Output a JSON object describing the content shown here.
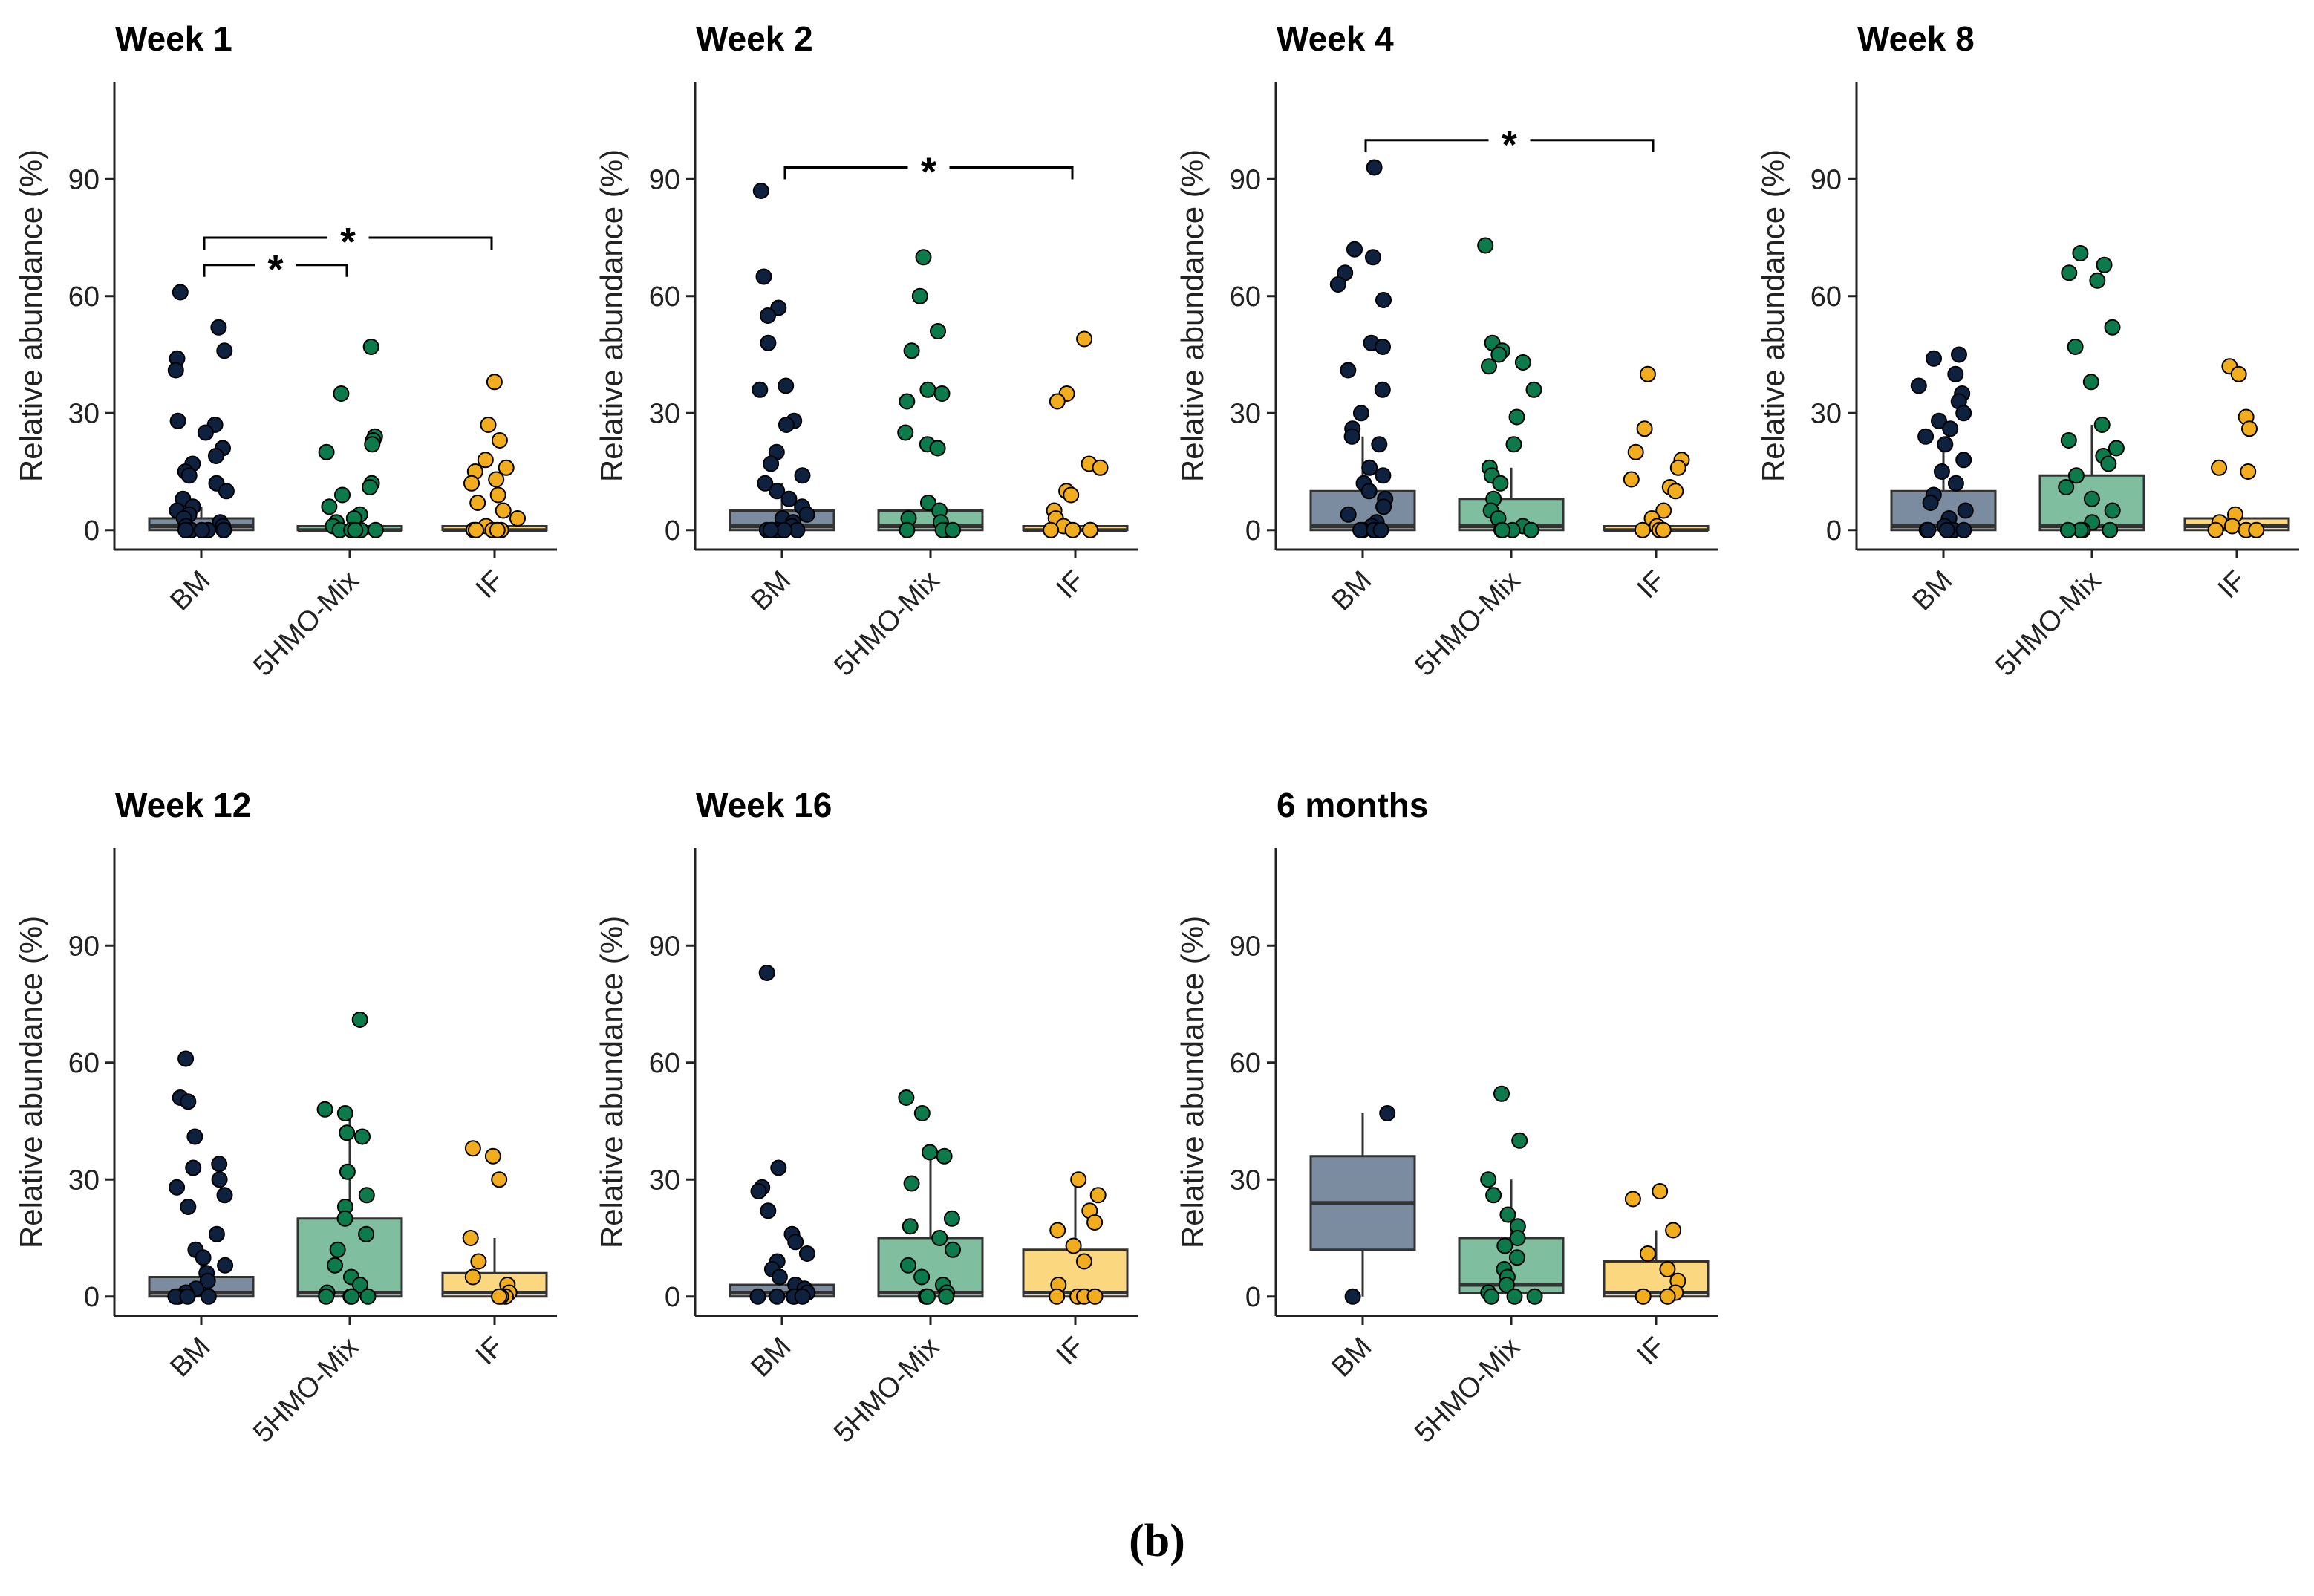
{
  "figure_label": "(b)",
  "colors": {
    "BM": {
      "box": "#7b8ca0",
      "point": "#0e2240"
    },
    "5HMO-Mix": {
      "box": "#7fbfa0",
      "point": "#0d7a4c"
    },
    "IF": {
      "box": "#fbd77f",
      "point": "#f2ad1f"
    }
  },
  "chart_data": [
    {
      "type": "box",
      "title": "Week 1",
      "ylabel": "Relative abundance (%)",
      "yticks": [
        0,
        30,
        60,
        90
      ],
      "ylim": [
        -5,
        115
      ],
      "categories": [
        "BM",
        "5HMO-Mix",
        "IF"
      ],
      "boxes": [
        {
          "q1": 0,
          "median": 1,
          "q3": 3
        },
        {
          "q1": 0,
          "median": 0,
          "q3": 1
        },
        {
          "q1": 0,
          "median": 0,
          "q3": 1
        }
      ],
      "points": [
        [
          61,
          52,
          46,
          44,
          41,
          28,
          27,
          25,
          21,
          19,
          17,
          15,
          14,
          12,
          10,
          8,
          6,
          5,
          4,
          3,
          2,
          1,
          1,
          0,
          0,
          0,
          0,
          0,
          0,
          0
        ],
        [
          47,
          35,
          24,
          23,
          22,
          20,
          12,
          11,
          9,
          6,
          4,
          3,
          2,
          1,
          0,
          0,
          0,
          0,
          0
        ],
        [
          38,
          27,
          23,
          18,
          16,
          15,
          13,
          12,
          9,
          7,
          5,
          3,
          1,
          0,
          0,
          0,
          0,
          0
        ]
      ],
      "significance": [
        {
          "from": "BM",
          "to": "5HMO-Mix",
          "y": 68,
          "label": "*"
        },
        {
          "from": "BM",
          "to": "IF",
          "y": 75,
          "label": "*"
        }
      ]
    },
    {
      "type": "box",
      "title": "Week 2",
      "ylabel": "Relative abundance (%)",
      "yticks": [
        0,
        30,
        60,
        90
      ],
      "ylim": [
        -5,
        115
      ],
      "categories": [
        "BM",
        "5HMO-Mix",
        "IF"
      ],
      "boxes": [
        {
          "q1": 0,
          "median": 1,
          "q3": 5
        },
        {
          "q1": 0,
          "median": 1,
          "q3": 5
        },
        {
          "q1": 0,
          "median": 0,
          "q3": 1
        }
      ],
      "points": [
        [
          87,
          65,
          57,
          55,
          48,
          37,
          36,
          28,
          27,
          20,
          17,
          14,
          12,
          10,
          8,
          6,
          4,
          3,
          2,
          1,
          0,
          0,
          0,
          0,
          0,
          0
        ],
        [
          70,
          60,
          51,
          46,
          36,
          35,
          33,
          25,
          22,
          21,
          7,
          5,
          3,
          2,
          0,
          0,
          0,
          0
        ],
        [
          49,
          35,
          33,
          17,
          16,
          10,
          9,
          5,
          3,
          1,
          0,
          0,
          0,
          0
        ]
      ],
      "significance": [
        {
          "from": "BM",
          "to": "IF",
          "y": 93,
          "label": "*"
        }
      ]
    },
    {
      "type": "box",
      "title": "Week 4",
      "ylabel": "Relative abundance (%)",
      "yticks": [
        0,
        30,
        60,
        90
      ],
      "ylim": [
        -5,
        115
      ],
      "categories": [
        "BM",
        "5HMO-Mix",
        "IF"
      ],
      "boxes": [
        {
          "q1": 0,
          "median": 1,
          "q3": 10
        },
        {
          "q1": 0,
          "median": 1,
          "q3": 8
        },
        {
          "q1": 0,
          "median": 0,
          "q3": 1
        }
      ],
      "points": [
        [
          93,
          72,
          70,
          66,
          63,
          59,
          48,
          47,
          41,
          36,
          30,
          26,
          24,
          22,
          16,
          14,
          12,
          10,
          8,
          6,
          4,
          2,
          1,
          0,
          0,
          0,
          0,
          0
        ],
        [
          73,
          48,
          46,
          45,
          43,
          42,
          36,
          29,
          22,
          16,
          14,
          12,
          8,
          5,
          3,
          1,
          0,
          0,
          0,
          0
        ],
        [
          40,
          26,
          20,
          18,
          16,
          13,
          11,
          10,
          5,
          3,
          1,
          0,
          0,
          0,
          0
        ]
      ],
      "significance": [
        {
          "from": "BM",
          "to": "IF",
          "y": 100,
          "label": "*"
        }
      ]
    },
    {
      "type": "box",
      "title": "Week 8",
      "ylabel": "Relative abundance (%)",
      "yticks": [
        0,
        30,
        60,
        90
      ],
      "ylim": [
        -5,
        115
      ],
      "categories": [
        "BM",
        "5HMO-Mix",
        "IF"
      ],
      "boxes": [
        {
          "q1": 0,
          "median": 1,
          "q3": 10
        },
        {
          "q1": 0,
          "median": 1,
          "q3": 14
        },
        {
          "q1": 0,
          "median": 1,
          "q3": 3
        }
      ],
      "points": [
        [
          45,
          44,
          40,
          37,
          35,
          33,
          30,
          28,
          26,
          24,
          22,
          18,
          15,
          12,
          9,
          7,
          5,
          3,
          1,
          0,
          0,
          0,
          0,
          0
        ],
        [
          71,
          68,
          66,
          64,
          52,
          47,
          38,
          27,
          23,
          21,
          19,
          17,
          14,
          11,
          8,
          5,
          2,
          0,
          0,
          0,
          0
        ],
        [
          42,
          40,
          29,
          26,
          16,
          15,
          4,
          2,
          1,
          0,
          0,
          0
        ]
      ],
      "significance": []
    },
    {
      "type": "box",
      "title": "Week 12",
      "ylabel": "Relative abundance (%)",
      "yticks": [
        0,
        30,
        60,
        90
      ],
      "ylim": [
        -5,
        115
      ],
      "categories": [
        "BM",
        "5HMO-Mix",
        "IF"
      ],
      "boxes": [
        {
          "q1": 0,
          "median": 1,
          "q3": 5
        },
        {
          "q1": 0,
          "median": 1,
          "q3": 20
        },
        {
          "q1": 0,
          "median": 1,
          "q3": 6
        }
      ],
      "points": [
        [
          61,
          51,
          50,
          41,
          34,
          33,
          30,
          28,
          26,
          23,
          16,
          12,
          10,
          8,
          6,
          4,
          2,
          1,
          0,
          0,
          0,
          0,
          0
        ],
        [
          71,
          48,
          47,
          42,
          41,
          32,
          26,
          23,
          20,
          16,
          12,
          8,
          5,
          3,
          1,
          0,
          0,
          0,
          0
        ],
        [
          38,
          36,
          30,
          15,
          9,
          5,
          3,
          1,
          0,
          0,
          0
        ]
      ],
      "significance": []
    },
    {
      "type": "box",
      "title": "Week 16",
      "ylabel": "Relative abundance (%)",
      "yticks": [
        0,
        30,
        60,
        90
      ],
      "ylim": [
        -5,
        115
      ],
      "categories": [
        "BM",
        "5HMO-Mix",
        "IF"
      ],
      "boxes": [
        {
          "q1": 0,
          "median": 1,
          "q3": 3
        },
        {
          "q1": 0,
          "median": 1,
          "q3": 15
        },
        {
          "q1": 0,
          "median": 1,
          "q3": 12
        }
      ],
      "points": [
        [
          83,
          33,
          28,
          27,
          22,
          16,
          14,
          11,
          9,
          7,
          5,
          3,
          2,
          1,
          0,
          0,
          0,
          0,
          0
        ],
        [
          51,
          47,
          37,
          36,
          29,
          20,
          18,
          15,
          12,
          8,
          5,
          3,
          1,
          0,
          0,
          0
        ],
        [
          30,
          26,
          22,
          19,
          17,
          13,
          9,
          3,
          0,
          0,
          0,
          0
        ]
      ],
      "significance": []
    },
    {
      "type": "box",
      "title": "6 months",
      "ylabel": "Relative abundance (%)",
      "yticks": [
        0,
        30,
        60,
        90
      ],
      "ylim": [
        -5,
        115
      ],
      "categories": [
        "BM",
        "5HMO-Mix",
        "IF"
      ],
      "boxes": [
        {
          "q1": 12,
          "median": 24,
          "q3": 36
        },
        {
          "q1": 1,
          "median": 3,
          "q3": 15
        },
        {
          "q1": 0,
          "median": 1,
          "q3": 9
        }
      ],
      "points": [
        [
          47,
          0
        ],
        [
          52,
          40,
          30,
          26,
          21,
          18,
          15,
          13,
          10,
          7,
          5,
          3,
          1,
          0,
          0,
          0
        ],
        [
          27,
          25,
          17,
          11,
          7,
          4,
          1,
          0,
          0
        ]
      ],
      "significance": []
    }
  ]
}
